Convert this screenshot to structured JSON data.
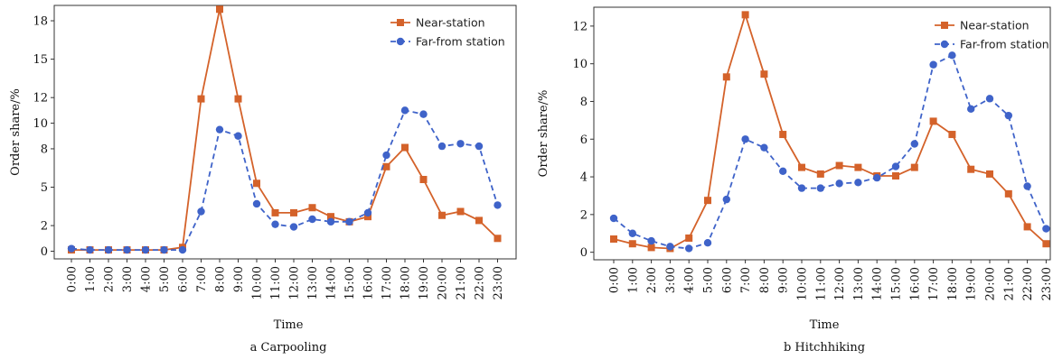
{
  "chart_data": [
    {
      "type": "line",
      "title": "",
      "caption": "a Carpooling",
      "xlabel": "Time",
      "ylabel": "Order share/%",
      "categories": [
        "0:00",
        "1:00",
        "2:00",
        "3:00",
        "4:00",
        "5:00",
        "6:00",
        "7:00",
        "8:00",
        "9:00",
        "10:00",
        "11:00",
        "12:00",
        "13:00",
        "14:00",
        "15:00",
        "16:00",
        "17:00",
        "18:00",
        "19:00",
        "20:00",
        "21:00",
        "22:00",
        "23:00"
      ],
      "ylim": [
        -0.6,
        19.2
      ],
      "yticks": [
        0,
        2,
        5,
        8,
        10,
        12,
        15,
        18
      ],
      "ytick_labels": [
        "0",
        "2",
        "5",
        "8",
        "10",
        "12",
        "15",
        "18"
      ],
      "legend_position": "top-right",
      "grid": false,
      "series": [
        {
          "name": "Near-station",
          "color": "#d4622a",
          "line_style": "solid",
          "marker": "square",
          "values": [
            0.1,
            0.1,
            0.1,
            0.1,
            0.1,
            0.1,
            0.3,
            11.9,
            18.9,
            11.9,
            5.3,
            3.0,
            3.0,
            3.4,
            2.7,
            2.3,
            2.7,
            6.6,
            8.1,
            5.6,
            2.8,
            3.1,
            2.4,
            1.0
          ]
        },
        {
          "name": "Far-from station",
          "color": "#3f63c9",
          "line_style": "dashed",
          "marker": "circle",
          "values": [
            0.2,
            0.1,
            0.1,
            0.1,
            0.1,
            0.1,
            0.1,
            3.1,
            9.5,
            9.0,
            3.7,
            2.1,
            1.9,
            2.5,
            2.3,
            2.3,
            3.0,
            7.5,
            11.0,
            10.7,
            8.2,
            8.4,
            8.2,
            3.6
          ]
        }
      ]
    },
    {
      "type": "line",
      "title": "",
      "caption": "b Hitchhiking",
      "xlabel": "Time",
      "ylabel": "Order share/%",
      "categories": [
        "0:00",
        "1:00",
        "2:00",
        "3:00",
        "4:00",
        "5:00",
        "6:00",
        "7:00",
        "8:00",
        "9:00",
        "10:00",
        "11:00",
        "12:00",
        "13:00",
        "14:00",
        "15:00",
        "16:00",
        "17:00",
        "18:00",
        "19:00",
        "20:00",
        "21:00",
        "22:00",
        "23:00"
      ],
      "ylim": [
        -0.4,
        13.0
      ],
      "yticks": [
        0,
        2,
        4,
        6,
        8,
        10,
        12
      ],
      "ytick_labels": [
        "0",
        "2",
        "4",
        "6",
        "8",
        "10",
        "12"
      ],
      "legend_position": "top-right",
      "grid": false,
      "series": [
        {
          "name": "Near-station",
          "color": "#d4622a",
          "line_style": "solid",
          "marker": "square",
          "values": [
            0.7,
            0.45,
            0.25,
            0.2,
            0.75,
            2.75,
            9.3,
            12.6,
            9.45,
            6.25,
            4.5,
            4.15,
            4.6,
            4.5,
            4.05,
            4.05,
            4.5,
            6.95,
            6.25,
            4.4,
            4.15,
            3.1,
            1.35,
            0.45
          ]
        },
        {
          "name": "Far-from station",
          "color": "#3f63c9",
          "line_style": "dashed",
          "marker": "circle",
          "values": [
            1.8,
            1.0,
            0.6,
            0.3,
            0.2,
            0.5,
            2.8,
            6.0,
            5.55,
            4.3,
            3.4,
            3.4,
            3.65,
            3.7,
            3.95,
            4.55,
            5.75,
            9.95,
            10.45,
            7.6,
            8.15,
            7.25,
            3.5,
            1.25
          ]
        }
      ]
    }
  ]
}
